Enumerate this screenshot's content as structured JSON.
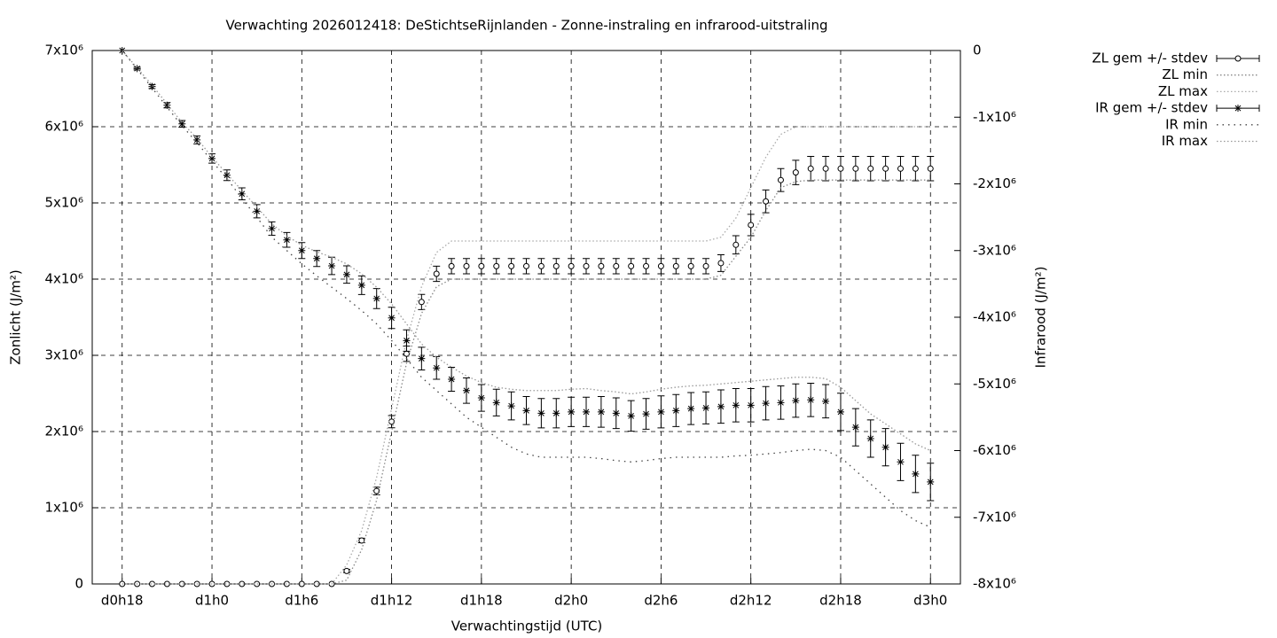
{
  "chart_data": {
    "type": "errorbar-line",
    "title": "Verwachting 2026012418: DeStichtseRijnlanden - Zonne-instraling en infrarood-uitstraling",
    "xlabel": "Verwachtingstijd (UTC)",
    "ylabel": "Zonlicht (J/m²)",
    "y2label": "Infrarood (J/m²)",
    "grid": true,
    "legend": "outside-top-right",
    "x": [
      18,
      19,
      20,
      21,
      22,
      23,
      24,
      25,
      26,
      27,
      28,
      29,
      30,
      31,
      32,
      33,
      34,
      35,
      36,
      37,
      38,
      39,
      40,
      41,
      42,
      43,
      44,
      45,
      46,
      47,
      48,
      49,
      50,
      51,
      52,
      53,
      54,
      55,
      56,
      57,
      58,
      59,
      60,
      61,
      62,
      63,
      64,
      65,
      66,
      67,
      68,
      69,
      70,
      71,
      72
    ],
    "xlim": [
      16,
      74
    ],
    "xticks": [
      {
        "value": 18,
        "label": "d0h18"
      },
      {
        "value": 24,
        "label": "d1h0"
      },
      {
        "value": 30,
        "label": "d1h6"
      },
      {
        "value": 36,
        "label": "d1h12"
      },
      {
        "value": 42,
        "label": "d1h18"
      },
      {
        "value": 48,
        "label": "d2h0"
      },
      {
        "value": 54,
        "label": "d2h6"
      },
      {
        "value": 60,
        "label": "d2h12"
      },
      {
        "value": 66,
        "label": "d2h18"
      },
      {
        "value": 72,
        "label": "d3h0"
      }
    ],
    "ylim": [
      0,
      7000000
    ],
    "yticks": [
      0,
      {
        "value": 1000000,
        "label": "1x10⁶"
      },
      {
        "value": 2000000,
        "label": "2x10⁶"
      },
      {
        "value": 3000000,
        "label": "3x10⁶"
      },
      {
        "value": 4000000,
        "label": "4x10⁶"
      },
      {
        "value": 5000000,
        "label": "5x10⁶"
      },
      {
        "value": 6000000,
        "label": "6x10⁶"
      },
      {
        "value": 7000000,
        "label": "7x10⁶"
      }
    ],
    "y2lim": [
      -8000000,
      0
    ],
    "y2ticks": [
      0,
      {
        "value": -1000000,
        "label": "-1x10⁶"
      },
      {
        "value": -2000000,
        "label": "-2x10⁶"
      },
      {
        "value": -3000000,
        "label": "-3x10⁶"
      },
      {
        "value": -4000000,
        "label": "-4x10⁶"
      },
      {
        "value": -5000000,
        "label": "-5x10⁶"
      },
      {
        "value": -6000000,
        "label": "-6x10⁶"
      },
      {
        "value": -7000000,
        "label": "-7x10⁶"
      },
      {
        "value": -8000000,
        "label": "-8x10⁶"
      }
    ],
    "series": [
      {
        "name": "ZL gem +/- stdev",
        "color": "#000000",
        "style": "errorbars",
        "marker": "circle",
        "values": [
          0,
          0,
          0,
          0,
          0,
          0,
          0,
          0,
          0,
          0,
          0,
          0,
          0,
          0,
          0,
          170000,
          570000,
          1220000,
          2130000,
          3020000,
          3700000,
          4070000,
          4170000,
          4170000,
          4170000,
          4170000,
          4170000,
          4170000,
          4170000,
          4170000,
          4170000,
          4170000,
          4170000,
          4170000,
          4170000,
          4170000,
          4170000,
          4170000,
          4170000,
          4170000,
          4210000,
          4450000,
          4710000,
          5020000,
          5300000,
          5400000,
          5450000,
          5450000,
          5450000,
          5450000,
          5450000,
          5450000,
          5450000,
          5450000,
          5450000
        ],
        "errors": [
          0,
          0,
          0,
          0,
          0,
          0,
          0,
          0,
          0,
          0,
          0,
          0,
          0,
          0,
          0,
          20000,
          30000,
          50000,
          80000,
          100000,
          100000,
          100000,
          100000,
          100000,
          100000,
          100000,
          100000,
          100000,
          100000,
          100000,
          100000,
          100000,
          100000,
          100000,
          100000,
          100000,
          100000,
          100000,
          100000,
          100000,
          110000,
          120000,
          140000,
          150000,
          150000,
          160000,
          160000,
          160000,
          160000,
          160000,
          160000,
          160000,
          160000,
          160000,
          160000
        ]
      },
      {
        "name": "ZL min",
        "color": "#888888",
        "style": "dotted",
        "values": [
          0,
          0,
          0,
          0,
          0,
          0,
          0,
          0,
          0,
          0,
          0,
          0,
          0,
          0,
          0,
          50000,
          450000,
          1100000,
          2000000,
          2900000,
          3550000,
          3900000,
          4000000,
          4000000,
          4000000,
          4000000,
          4000000,
          4000000,
          4000000,
          4000000,
          4000000,
          4000000,
          4000000,
          4000000,
          4000000,
          4000000,
          4000000,
          4000000,
          4000000,
          4000000,
          4050000,
          4300000,
          4550000,
          4900000,
          5200000,
          5280000,
          5300000,
          5300000,
          5300000,
          5300000,
          5300000,
          5300000,
          5300000,
          5300000,
          5300000
        ]
      },
      {
        "name": "ZL max",
        "color": "#aaaaaa",
        "style": "dotted",
        "values": [
          0,
          0,
          0,
          0,
          0,
          0,
          0,
          0,
          0,
          0,
          0,
          0,
          0,
          0,
          0,
          250000,
          700000,
          1400000,
          2300000,
          3200000,
          3900000,
          4350000,
          4500000,
          4500000,
          4500000,
          4500000,
          4500000,
          4500000,
          4500000,
          4500000,
          4500000,
          4500000,
          4500000,
          4500000,
          4500000,
          4500000,
          4500000,
          4500000,
          4500000,
          4500000,
          4550000,
          4800000,
          5200000,
          5600000,
          5900000,
          6000000,
          6000000,
          6000000,
          6000000,
          6000000,
          6000000,
          6000000,
          6000000,
          6000000,
          6000000
        ]
      },
      {
        "name": "IR gem +/- stdev",
        "color": "#000000",
        "style": "errorbars",
        "marker": "star",
        "axis": "y2",
        "values": [
          0,
          -270000,
          -540000,
          -820000,
          -1100000,
          -1340000,
          -1620000,
          -1870000,
          -2150000,
          -2410000,
          -2670000,
          -2840000,
          -3000000,
          -3120000,
          -3230000,
          -3360000,
          -3520000,
          -3720000,
          -4010000,
          -4350000,
          -4620000,
          -4760000,
          -4930000,
          -5100000,
          -5210000,
          -5280000,
          -5330000,
          -5400000,
          -5440000,
          -5440000,
          -5420000,
          -5420000,
          -5420000,
          -5440000,
          -5480000,
          -5450000,
          -5420000,
          -5400000,
          -5370000,
          -5360000,
          -5340000,
          -5320000,
          -5320000,
          -5290000,
          -5280000,
          -5250000,
          -5240000,
          -5260000,
          -5420000,
          -5650000,
          -5820000,
          -5950000,
          -6170000,
          -6350000,
          -6470000
        ],
        "errors": [
          0,
          20000,
          30000,
          40000,
          50000,
          60000,
          70000,
          80000,
          90000,
          100000,
          100000,
          110000,
          120000,
          120000,
          130000,
          130000,
          140000,
          150000,
          160000,
          160000,
          170000,
          170000,
          180000,
          190000,
          200000,
          200000,
          210000,
          210000,
          220000,
          220000,
          220000,
          220000,
          230000,
          230000,
          230000,
          230000,
          240000,
          240000,
          240000,
          240000,
          250000,
          250000,
          250000,
          250000,
          250000,
          250000,
          250000,
          250000,
          280000,
          280000,
          280000,
          280000,
          280000,
          280000,
          280000
        ]
      },
      {
        "name": "IR min",
        "color": "#444444",
        "style": "dotted-sparse",
        "axis": "y2",
        "values": [
          0,
          -280000,
          -560000,
          -850000,
          -1130000,
          -1380000,
          -1660000,
          -1920000,
          -2220000,
          -2500000,
          -2800000,
          -3000000,
          -3200000,
          -3380000,
          -3550000,
          -3720000,
          -3900000,
          -4100000,
          -4350000,
          -4620000,
          -4900000,
          -5100000,
          -5300000,
          -5500000,
          -5650000,
          -5800000,
          -5950000,
          -6050000,
          -6100000,
          -6100000,
          -6100000,
          -6100000,
          -6120000,
          -6150000,
          -6170000,
          -6150000,
          -6120000,
          -6100000,
          -6100000,
          -6100000,
          -6100000,
          -6080000,
          -6070000,
          -6050000,
          -6030000,
          -6000000,
          -5980000,
          -6000000,
          -6100000,
          -6300000,
          -6500000,
          -6700000,
          -6900000,
          -7050000,
          -7150000
        ]
      },
      {
        "name": "IR max",
        "color": "#999999",
        "style": "dotted",
        "axis": "y2",
        "values": [
          0,
          -260000,
          -520000,
          -800000,
          -1080000,
          -1320000,
          -1600000,
          -1850000,
          -2100000,
          -2350000,
          -2600000,
          -2780000,
          -2920000,
          -3020000,
          -3100000,
          -3200000,
          -3350000,
          -3550000,
          -3800000,
          -4100000,
          -4400000,
          -4600000,
          -4750000,
          -4880000,
          -4980000,
          -5050000,
          -5080000,
          -5100000,
          -5100000,
          -5100000,
          -5080000,
          -5070000,
          -5100000,
          -5120000,
          -5150000,
          -5120000,
          -5080000,
          -5050000,
          -5030000,
          -5020000,
          -5000000,
          -4980000,
          -4960000,
          -4940000,
          -4920000,
          -4900000,
          -4900000,
          -4920000,
          -5050000,
          -5250000,
          -5450000,
          -5600000,
          -5750000,
          -5900000,
          -6000000
        ]
      }
    ]
  }
}
